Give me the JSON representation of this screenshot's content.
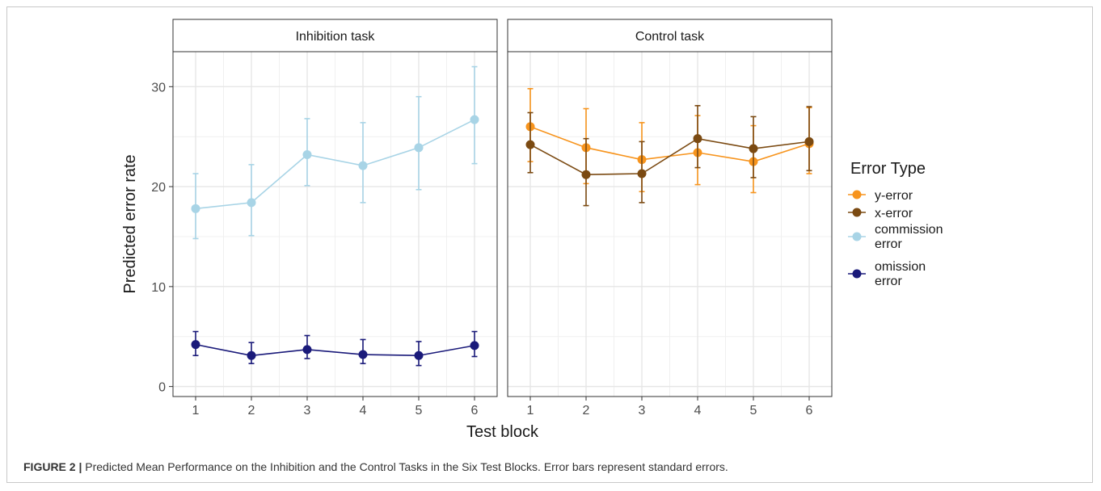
{
  "chart_data": {
    "type": "line",
    "x": [
      1,
      2,
      3,
      4,
      5,
      6
    ],
    "xlabel": "Test block",
    "ylabel": "Predicted error rate",
    "ylim": [
      -1,
      33.5
    ],
    "yticks": [
      0,
      10,
      20,
      30
    ],
    "grid": true,
    "legend_title": "Error Type",
    "legend_position": "right",
    "legend": [
      {
        "label": "y-error",
        "color": "#F7941D"
      },
      {
        "label": "x-error",
        "color": "#7B4A12"
      },
      {
        "label": "commission error",
        "color": "#A8D4E6"
      },
      {
        "label": "omission error",
        "color": "#1A1A7A"
      }
    ],
    "panels": [
      {
        "title": "Inhibition task",
        "series": [
          {
            "name": "commission error",
            "color": "#A8D4E6",
            "values": [
              17.8,
              18.4,
              23.2,
              22.1,
              23.9,
              26.7
            ],
            "lower": [
              14.8,
              15.1,
              20.1,
              18.4,
              19.7,
              22.3
            ],
            "upper": [
              21.3,
              22.2,
              26.8,
              26.4,
              29.0,
              32.0
            ]
          },
          {
            "name": "omission error",
            "color": "#1A1A7A",
            "values": [
              4.2,
              3.1,
              3.7,
              3.2,
              3.1,
              4.1
            ],
            "lower": [
              3.1,
              2.3,
              2.8,
              2.3,
              2.1,
              3.0
            ],
            "upper": [
              5.5,
              4.4,
              5.1,
              4.7,
              4.5,
              5.5
            ]
          }
        ]
      },
      {
        "title": "Control task",
        "series": [
          {
            "name": "y-error",
            "color": "#F7941D",
            "values": [
              26.0,
              23.9,
              22.7,
              23.4,
              22.5,
              24.3
            ],
            "lower": [
              22.5,
              20.3,
              19.5,
              20.2,
              19.4,
              21.3
            ],
            "upper": [
              29.8,
              27.8,
              26.4,
              27.1,
              26.1,
              27.9
            ]
          },
          {
            "name": "x-error",
            "color": "#7B4A12",
            "values": [
              24.2,
              21.2,
              21.3,
              24.8,
              23.8,
              24.5
            ],
            "lower": [
              21.4,
              18.1,
              18.4,
              21.9,
              20.9,
              21.6
            ],
            "upper": [
              27.4,
              24.8,
              24.5,
              28.1,
              27.0,
              28.0
            ]
          }
        ]
      }
    ]
  },
  "caption": {
    "label": "FIGURE 2 |",
    "text": " Predicted Mean Performance on the Inhibition and the Control Tasks in the Six Test Blocks. Error bars represent standard errors."
  }
}
